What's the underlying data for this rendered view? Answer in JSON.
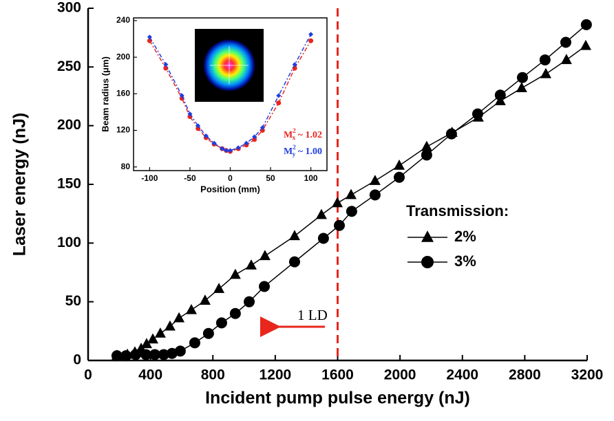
{
  "chart_data": [
    {
      "type": "line",
      "x_label": "Incident pump pulse energy (nJ)",
      "y_label": "Laser energy (nJ)",
      "xlim": [
        0,
        3200
      ],
      "ylim": [
        0,
        300
      ],
      "xticks": [
        0,
        400,
        800,
        1200,
        1600,
        2000,
        2400,
        2800,
        3200
      ],
      "yticks": [
        0,
        50,
        100,
        150,
        200,
        250,
        300
      ],
      "legend_title": "Transmission:",
      "vline": {
        "x": 1600,
        "color": "#e8261c"
      },
      "annotation": "1 LD",
      "series": [
        {
          "name": "2%",
          "color": "#000000",
          "marker": "triangle",
          "x": [
            185,
            252,
            300,
            340,
            375,
            415,
            463,
            525,
            583,
            662,
            750,
            839,
            944,
            1046,
            1134,
            1324,
            1496,
            1598,
            1686,
            1840,
            1995,
            2171,
            2334,
            2502,
            2643,
            2780,
            2935,
            3067,
            3191
          ],
          "values": [
            4,
            5,
            7,
            10,
            14,
            18,
            23,
            29,
            36,
            43,
            51,
            61,
            73,
            81,
            89,
            106,
            124,
            134,
            141,
            153,
            166,
            182,
            194,
            207,
            221,
            232,
            244,
            256,
            268
          ]
        },
        {
          "name": "3%",
          "color": "#000000",
          "marker": "circle",
          "x": [
            185,
            243,
            305,
            371,
            428,
            485,
            538,
            591,
            684,
            772,
            856,
            944,
            1033,
            1130,
            1324,
            1509,
            1611,
            1690,
            1840,
            1995,
            2171,
            2330,
            2498,
            2643,
            2785,
            2930,
            3063,
            3195
          ],
          "values": [
            4,
            4,
            5,
            5,
            5,
            5,
            6,
            8,
            15,
            23,
            32,
            40,
            50,
            63,
            84,
            104,
            115,
            127,
            141,
            156,
            175,
            193,
            210,
            226,
            241,
            256,
            271,
            286
          ]
        }
      ]
    },
    {
      "type": "line",
      "x_label": "Position (mm)",
      "y_label": "Beam radius (μm)",
      "xlim": [
        -120,
        120
      ],
      "ylim": [
        76,
        243
      ],
      "xticks": [
        -100,
        -50,
        0,
        50,
        100
      ],
      "yticks": [
        80,
        120,
        160,
        200,
        240
      ],
      "series": [
        {
          "color": "#e8261c",
          "marker": "circle",
          "label": {
            "base": "M",
            "sup": "2",
            "sub": "x",
            "rest": " ~ 1.02"
          },
          "x": [
            -100,
            -80,
            -60,
            -50,
            -40,
            -30,
            -20,
            -10,
            -5,
            0,
            10,
            20,
            30,
            40,
            60,
            80,
            100
          ],
          "values": [
            218,
            188,
            155,
            135,
            122,
            112,
            105,
            100,
            98,
            97,
            100,
            104,
            110,
            120,
            150,
            188,
            218
          ]
        },
        {
          "color": "#1f3fe0",
          "marker": "diamond",
          "label": {
            "base": "M",
            "sup": "2",
            "sub": "y",
            "rest": " ~ 1.00"
          },
          "x": [
            -100,
            -80,
            -60,
            -50,
            -40,
            -30,
            -20,
            -10,
            -5,
            0,
            10,
            20,
            30,
            40,
            60,
            80,
            100
          ],
          "values": [
            222,
            192,
            158,
            138,
            125,
            114,
            106,
            100,
            98,
            98,
            101,
            106,
            113,
            123,
            158,
            192,
            225
          ]
        }
      ]
    }
  ]
}
